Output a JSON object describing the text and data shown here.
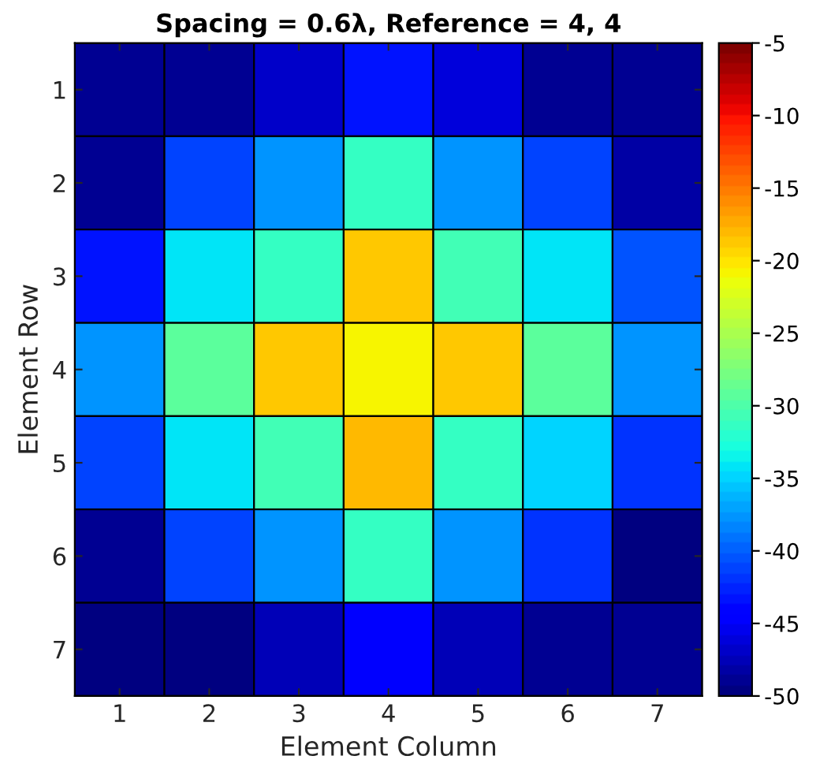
{
  "chart_data": {
    "type": "heatmap",
    "title": "Spacing = 0.6λ, Reference = 4, 4",
    "xlabel": "Element Column",
    "ylabel": "Element Row",
    "categories": [
      "1",
      "2",
      "3",
      "4",
      "5",
      "6",
      "7"
    ],
    "y_categories": [
      "1",
      "2",
      "3",
      "4",
      "5",
      "6",
      "7"
    ],
    "cells": [
      [
        -49,
        -49,
        -46.5,
        -43.5,
        -46,
        -49,
        -49
      ],
      [
        -49,
        -41,
        -38,
        -31.5,
        -38,
        -41.5,
        -48
      ],
      [
        -43,
        -34.5,
        -31.5,
        -18.5,
        -31,
        -34.5,
        -40.5
      ],
      [
        -38,
        -29,
        -18.5,
        -20.5,
        -18.5,
        -29,
        -38
      ],
      [
        -41,
        -34.5,
        -30.5,
        -18,
        -31.5,
        -35,
        -42
      ],
      [
        -49,
        -41.5,
        -38,
        -31.5,
        -37.5,
        -42,
        -49.5
      ],
      [
        -49.5,
        -49.5,
        -47.5,
        -45,
        -47.5,
        -49,
        -49
      ]
    ],
    "clim": [
      -50,
      -5
    ],
    "cticks": [
      -50,
      -45,
      -40,
      -35,
      -30,
      -25,
      -20,
      -15,
      -10,
      -5
    ]
  }
}
